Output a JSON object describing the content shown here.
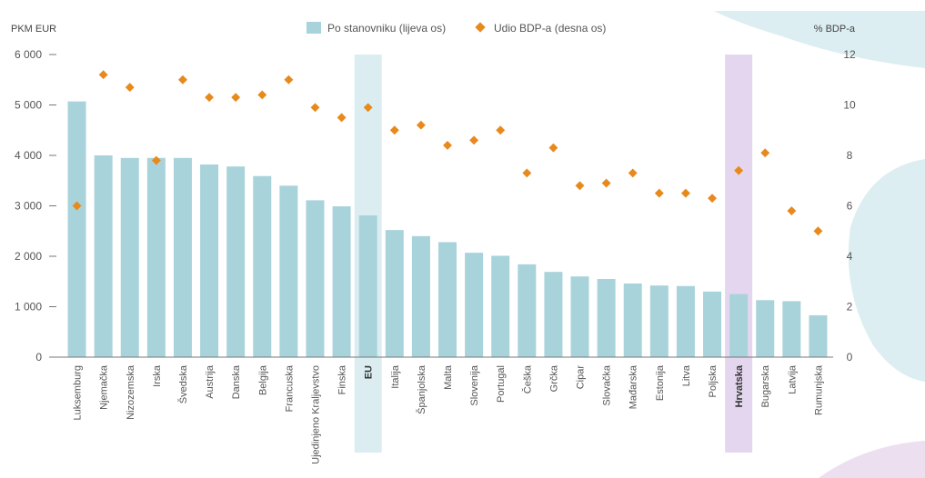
{
  "chart_data": {
    "type": "bar",
    "left_unit_label": "PKM EUR",
    "right_unit_label": "% BDP-a",
    "categories": [
      "Luksemburg",
      "Njemačka",
      "Nizozemska",
      "Irska",
      "Švedska",
      "Austrija",
      "Danska",
      "Belgija",
      "Francuska",
      "Ujedinjeno Kraljevstvo",
      "Finska",
      "EU",
      "Italija",
      "Španjolska",
      "Malta",
      "Slovenija",
      "Portugal",
      "Češka",
      "Grčka",
      "Cipar",
      "Slovačka",
      "Mađarska",
      "Estonija",
      "Litva",
      "Poljska",
      "Hrvatska",
      "Bugarska",
      "Latvija",
      "Rumunjska"
    ],
    "highlighted": [
      "EU",
      "Hrvatska"
    ],
    "series": [
      {
        "name": "Po stanovniku (lijeva os)",
        "kind": "bar",
        "axis": "left",
        "color": "#a8d3db",
        "values": [
          5070,
          4000,
          3950,
          3950,
          3950,
          3820,
          3780,
          3590,
          3400,
          3110,
          2990,
          2810,
          2520,
          2400,
          2280,
          2070,
          2010,
          1840,
          1690,
          1600,
          1550,
          1460,
          1420,
          1410,
          1300,
          1250,
          1130,
          1110,
          830
        ]
      },
      {
        "name": "Udio BDP-a (desna os)",
        "kind": "scatter",
        "axis": "right",
        "color": "#e8891c",
        "values": [
          6.0,
          11.2,
          10.7,
          7.8,
          11.0,
          10.3,
          10.3,
          10.4,
          11.0,
          9.9,
          9.5,
          9.9,
          9.0,
          9.2,
          8.4,
          8.6,
          9.0,
          7.3,
          8.3,
          6.8,
          6.9,
          7.3,
          6.5,
          6.5,
          6.3,
          7.4,
          8.1,
          5.8,
          5.0
        ]
      }
    ],
    "ylim_left": [
      0,
      6000
    ],
    "ylim_right": [
      0,
      12
    ],
    "yticks_left": [
      "0",
      "1 000",
      "2 000",
      "3 000",
      "4 000",
      "5 000",
      "6 000"
    ],
    "yticks_right": [
      "0",
      "2",
      "4",
      "6",
      "8",
      "10",
      "12"
    ],
    "legend_position": "top",
    "grid": false,
    "highlight_colors": {
      "EU": "#dcedf2",
      "Hrvatska": "#e3d6ee"
    }
  }
}
